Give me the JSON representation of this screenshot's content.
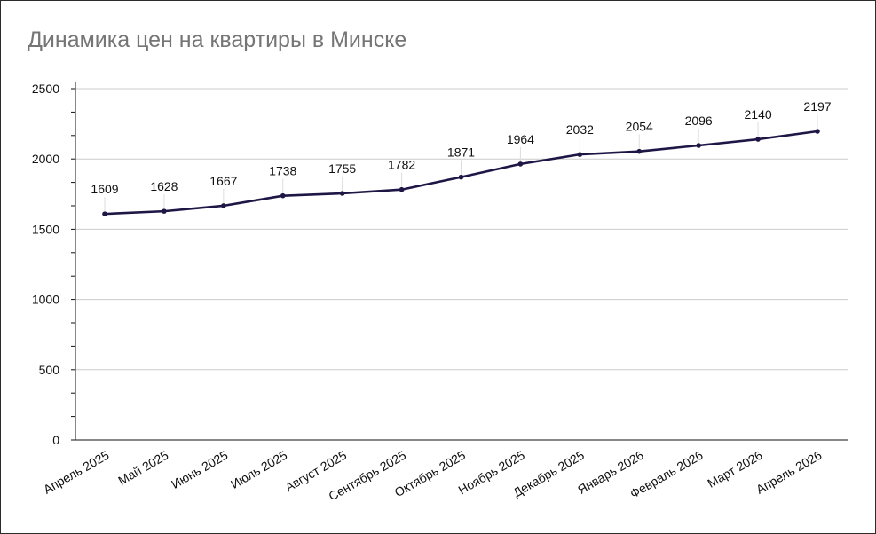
{
  "chart_data": {
    "type": "line",
    "title": "Динамика цен на квартиры в Минске",
    "xlabel": "",
    "ylabel": "",
    "categories": [
      "Апрель 2025",
      "Май 2025",
      "Июнь 2025",
      "Июль 2025",
      "Август 2025",
      "Сентябрь 2025",
      "Октябрь 2025",
      "Ноябрь 2025",
      "Декабрь 2025",
      "Январь 2026",
      "Февраль 2026",
      "Март 2026",
      "Апрель 2026"
    ],
    "series": [
      {
        "values": [
          1609,
          1628,
          1667,
          1738,
          1755,
          1782,
          1871,
          1964,
          2032,
          2054,
          2096,
          2140,
          2197
        ]
      }
    ],
    "value_labels": [
      "1609",
      "1628",
      "1667",
      "1738",
      "1755",
      "1782",
      "1871",
      "1964",
      "2032",
      "2054",
      "2096",
      "2140",
      "2197"
    ],
    "ylim": [
      0,
      2500
    ],
    "yticks": [
      0,
      500,
      1000,
      1500,
      2000,
      2500
    ],
    "ytick_labels": [
      "0",
      "500",
      "1000",
      "1500",
      "2000",
      "2500"
    ],
    "grid": true,
    "legend": "none",
    "colors": {
      "line": "#1f1646",
      "grid": "#cccccc",
      "axis": "#111111",
      "title": "#757575"
    }
  }
}
